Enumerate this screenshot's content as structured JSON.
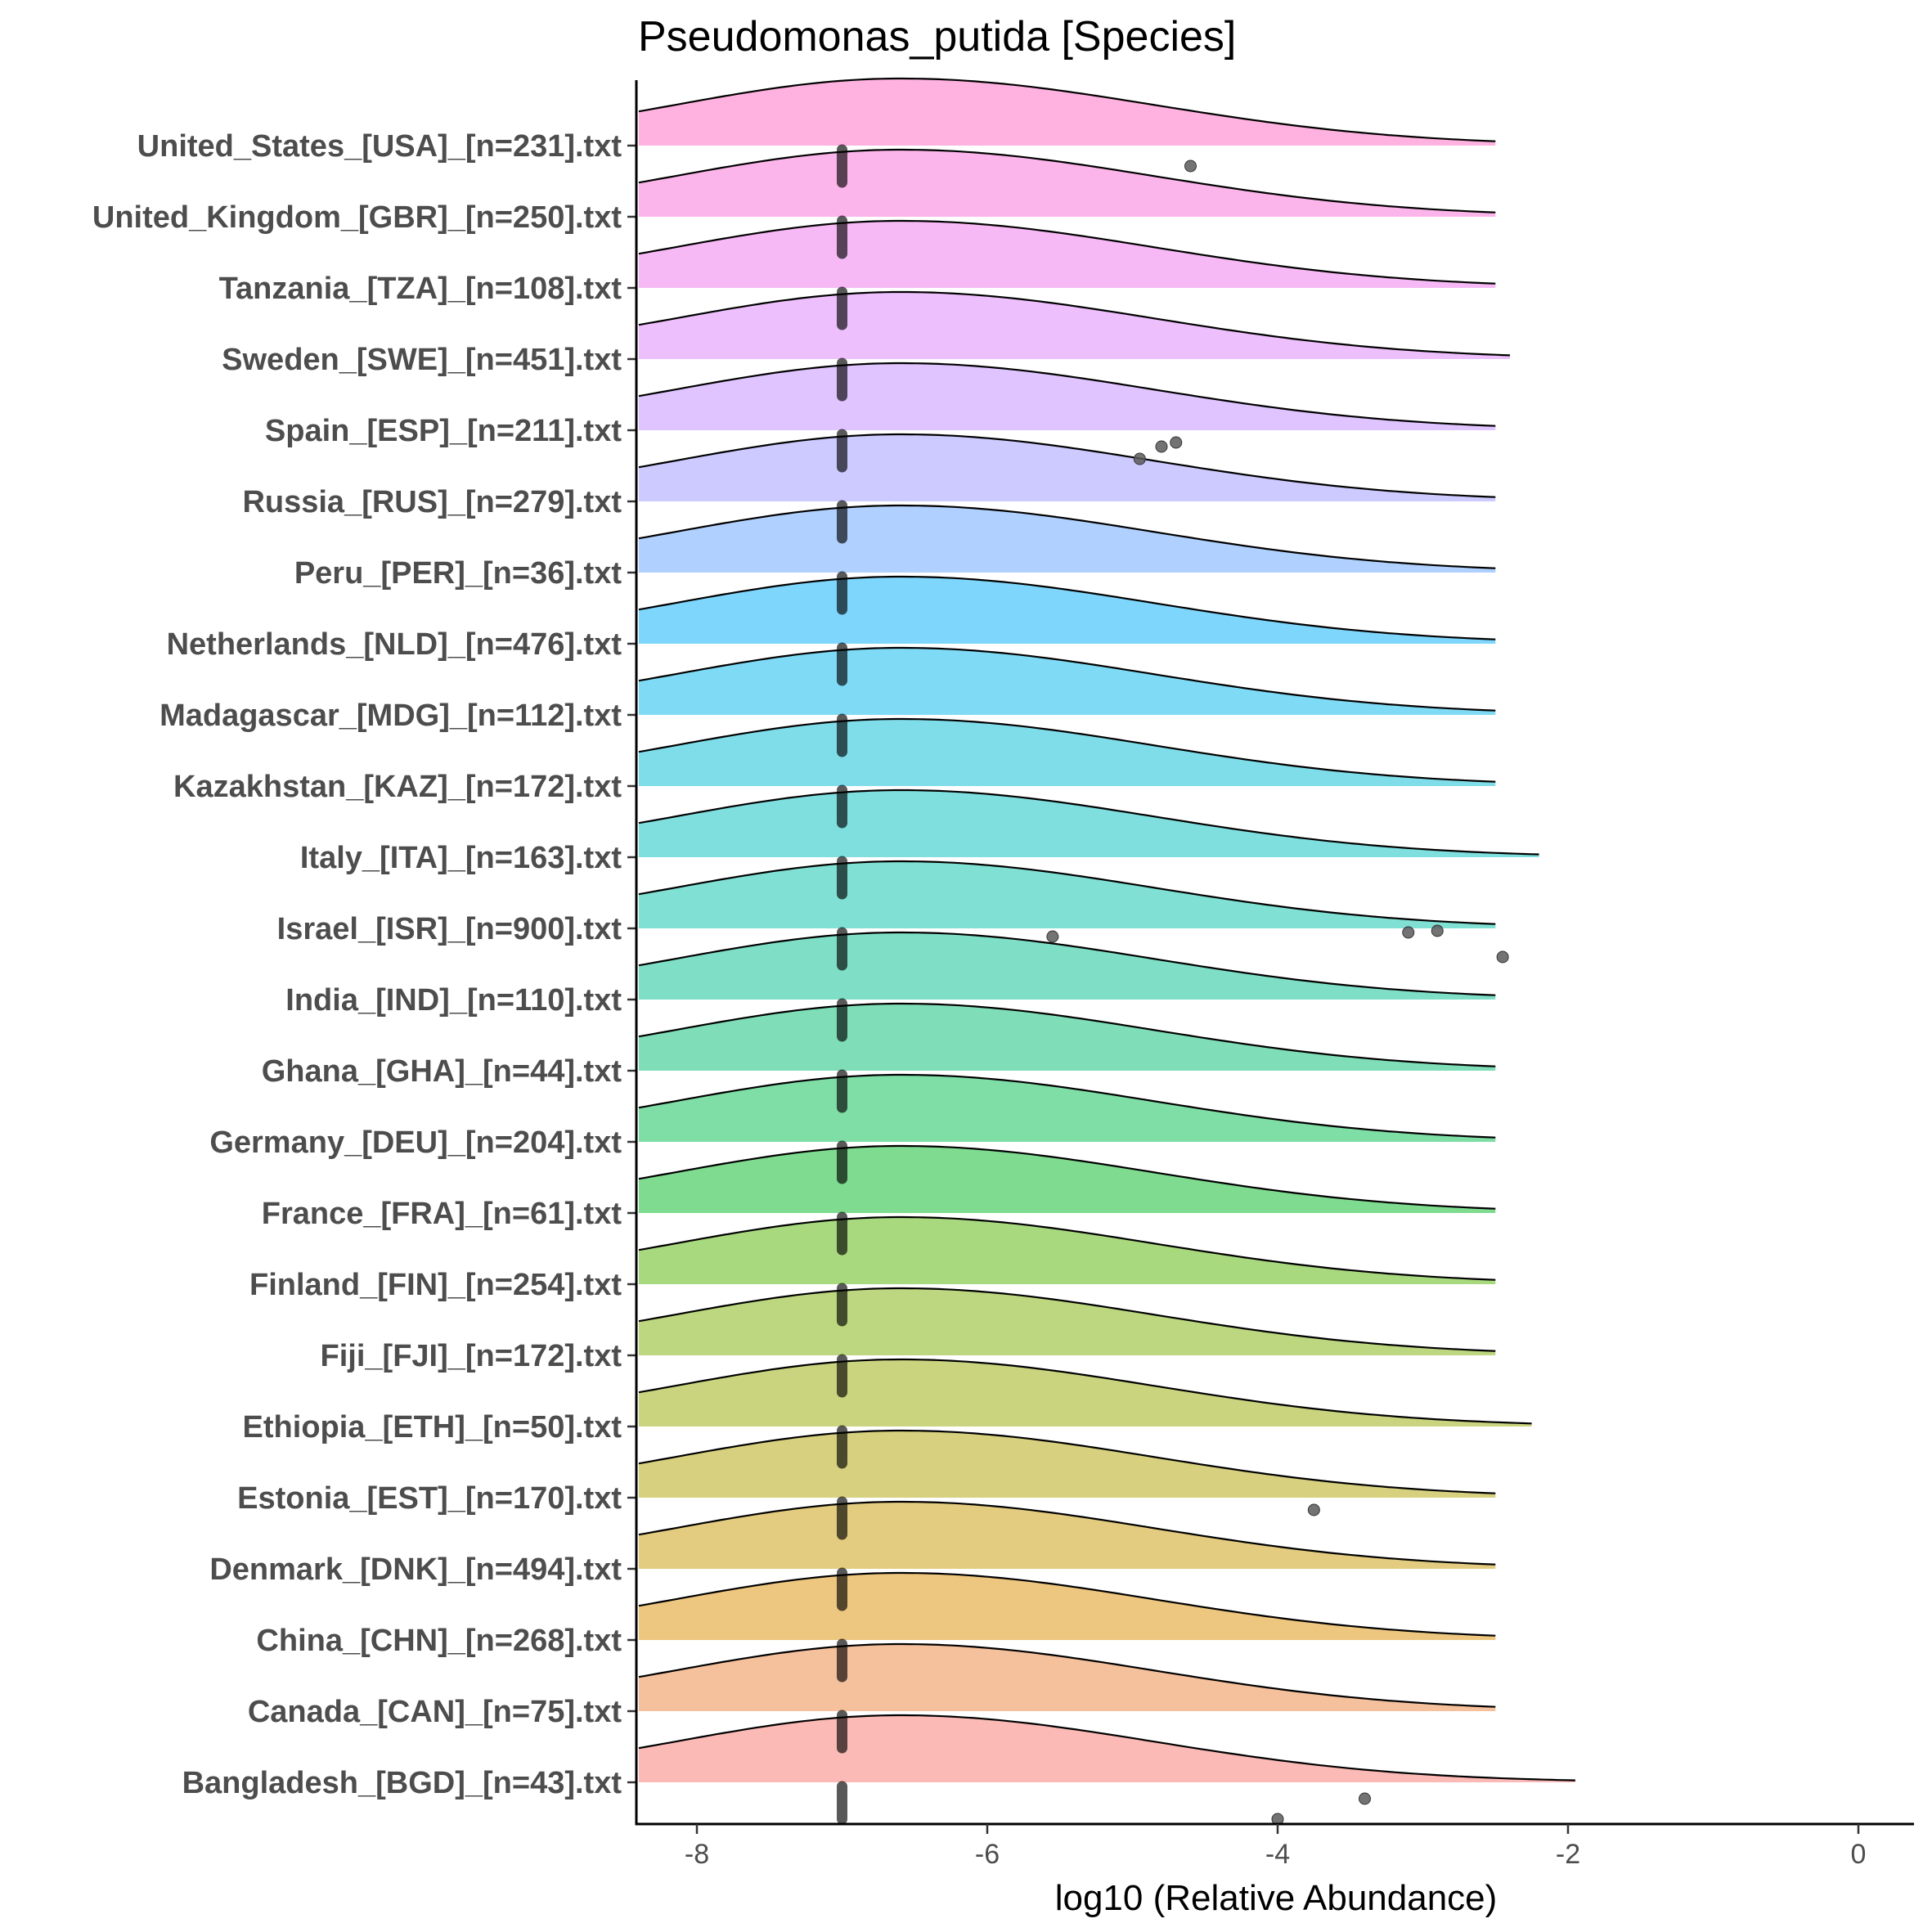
{
  "chart_data": {
    "type": "ridgeline",
    "title": "Pseudomonas_putida [Species]",
    "xlabel": "log10 (Relative Abundance)",
    "ylabel": "",
    "xlim": [
      -8.4,
      0.4
    ],
    "xticks": [
      -8,
      -6,
      -4,
      -2,
      0
    ],
    "grid": false,
    "legend": "none",
    "median": -7.0,
    "peak": -6.6,
    "series": [
      {
        "name": "Bangladesh_[BGD]_[n=43].txt",
        "color": "#F8766D",
        "tail_end": -1.95,
        "outliers": [
          {
            "x": -4.0,
            "jitter": -0.2
          },
          {
            "x": -3.4,
            "jitter": 0.05
          }
        ]
      },
      {
        "name": "Canada_[CAN]_[n=75].txt",
        "color": "#EC8239",
        "tail_end": -2.5,
        "outliers": []
      },
      {
        "name": "China_[CHN]_[n=268].txt",
        "color": "#DB8E00",
        "tail_end": -2.5,
        "outliers": []
      },
      {
        "name": "Denmark_[DNK]_[n=494].txt",
        "color": "#C79800",
        "tail_end": -2.5,
        "outliers": []
      },
      {
        "name": "Estonia_[EST]_[n=170].txt",
        "color": "#AFA100",
        "tail_end": -2.5,
        "outliers": [
          {
            "x": -3.75,
            "jitter": 0.1
          }
        ]
      },
      {
        "name": "Ethiopia_[ETH]_[n=50].txt",
        "color": "#96A900",
        "tail_end": -2.25,
        "outliers": []
      },
      {
        "name": "Fiji_[FJI]_[n=172].txt",
        "color": "#7AAF00",
        "tail_end": -2.5,
        "outliers": []
      },
      {
        "name": "Finland_[FIN]_[n=254].txt",
        "color": "#53B400",
        "tail_end": -2.5,
        "outliers": []
      },
      {
        "name": "France_[FRA]_[n=61].txt",
        "color": "#00B81F",
        "tail_end": -2.5,
        "outliers": []
      },
      {
        "name": "Germany_[DEU]_[n=204].txt",
        "color": "#00BB4E",
        "tail_end": -2.5,
        "outliers": []
      },
      {
        "name": "Ghana_[GHA]_[n=44].txt",
        "color": "#00BE70",
        "tail_end": -2.5,
        "outliers": []
      },
      {
        "name": "India_[IND]_[n=110].txt",
        "color": "#00C08D",
        "tail_end": -2.5,
        "outliers": []
      },
      {
        "name": "Israel_[ISR]_[n=900].txt",
        "color": "#00C1A7",
        "tail_end": -2.5,
        "outliers": [
          {
            "x": -5.55,
            "jitter": 0.15
          },
          {
            "x": -3.1,
            "jitter": 0.2
          },
          {
            "x": -2.9,
            "jitter": 0.22
          },
          {
            "x": -2.45,
            "jitter": -0.1
          }
        ]
      },
      {
        "name": "Italy_[ITA]_[n=163].txt",
        "color": "#00BFC0",
        "tail_end": -2.2,
        "outliers": []
      },
      {
        "name": "Kazakhstan_[KAZ]_[n=172].txt",
        "color": "#00BCD6",
        "tail_end": -2.5,
        "outliers": []
      },
      {
        "name": "Madagascar_[MDG]_[n=112].txt",
        "color": "#00B6EB",
        "tail_end": -2.5,
        "outliers": []
      },
      {
        "name": "Netherlands_[NLD]_[n=476].txt",
        "color": "#00AEFA",
        "tail_end": -2.5,
        "outliers": []
      },
      {
        "name": "Peru_[PER]_[n=36].txt",
        "color": "#61A3FF",
        "tail_end": -2.5,
        "outliers": []
      },
      {
        "name": "Russia_[RUS]_[n=279].txt",
        "color": "#9A96FF",
        "tail_end": -2.5,
        "outliers": []
      },
      {
        "name": "Spain_[ESP]_[n=211].txt",
        "color": "#C08AFF",
        "tail_end": -2.5,
        "outliers": [
          {
            "x": -4.95,
            "jitter": -0.1
          },
          {
            "x": -4.8,
            "jitter": 0.05
          },
          {
            "x": -4.7,
            "jitter": 0.1
          }
        ]
      },
      {
        "name": "Sweden_[SWE]_[n=451].txt",
        "color": "#DB7FFB",
        "tail_end": -2.4,
        "outliers": []
      },
      {
        "name": "Tanzania_[TZA]_[n=108].txt",
        "color": "#EE74EC",
        "tail_end": -2.5,
        "outliers": []
      },
      {
        "name": "United_Kingdom_[GBR]_[n=250].txt",
        "color": "#F96CD8",
        "tail_end": -2.5,
        "outliers": []
      },
      {
        "name": "United_States_[USA]_[n=231].txt",
        "color": "#FF66C1",
        "tail_end": -2.5,
        "outliers": [
          {
            "x": -4.6,
            "jitter": 0.0
          }
        ]
      }
    ]
  }
}
